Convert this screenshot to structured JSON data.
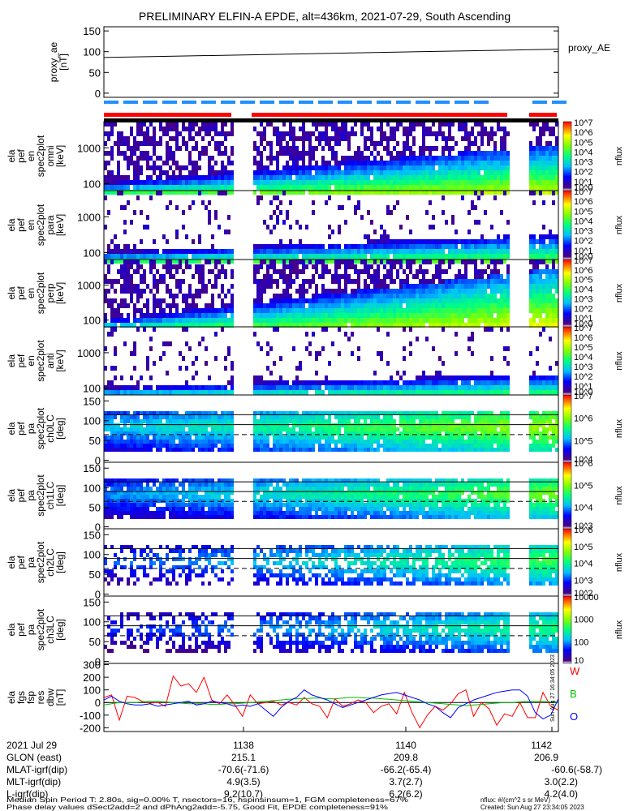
{
  "title": "PRELIMINARY ELFIN-A EPDE, alt=436km, 2021-07-29, South Ascending",
  "colors": {
    "status_red": "#ff0000",
    "status_blue": "#1e90ff",
    "fgs_w": "#ff0000",
    "fgs_b": "#00c000",
    "fgs_o": "#0000ff",
    "black": "#000000"
  },
  "chart_data": [
    {
      "type": "line",
      "panel": "proxy_ae",
      "ylabel": "proxy_ae\n[nT]",
      "yticks": [
        "150",
        "100",
        "50",
        "0"
      ],
      "ylim": [
        -10,
        160
      ],
      "series": [
        {
          "name": "proxy_AE",
          "x": [
            0,
            1
          ],
          "values": [
            86,
            106
          ]
        }
      ],
      "legend": "proxy_AE"
    },
    {
      "type": "heatmap",
      "panel": "en_spectra_1",
      "ylabel": "ela\npef\nen\nspec2plot\nomni\n[keV]",
      "yticks": [
        "1000",
        "100"
      ],
      "colorbar": {
        "label": "nflux",
        "ticks": [
          "10^7",
          "10^6",
          "10^5",
          "10^4",
          "10^3",
          "10^2",
          "10^1",
          "10^0"
        ]
      }
    },
    {
      "type": "heatmap",
      "panel": "en_spectra_2",
      "ylabel": "ela\npef\nen\nspec2plot\npara\n[keV]",
      "yticks": [
        "1000",
        "100"
      ],
      "colorbar": {
        "label": "nflux",
        "ticks": [
          "10^7",
          "10^6",
          "10^5",
          "10^4",
          "10^3",
          "10^2",
          "10^1",
          "10^0"
        ]
      }
    },
    {
      "type": "heatmap",
      "panel": "en_spectra_3",
      "ylabel": "ela\npef\nen\nspec2plot\nperp\n[keV]",
      "yticks": [
        "1000",
        "100"
      ],
      "colorbar": {
        "label": "nflux",
        "ticks": [
          "10^7",
          "10^6",
          "10^5",
          "10^4",
          "10^3",
          "10^2",
          "10^1",
          "10^0"
        ]
      }
    },
    {
      "type": "heatmap",
      "panel": "en_spectra_4",
      "ylabel": "ela\npef\nen\nspec2plot\nanti\n[keV]",
      "yticks": [
        "1000",
        "100"
      ],
      "colorbar": {
        "label": "nflux",
        "ticks": [
          "10^7",
          "10^6",
          "10^5",
          "10^4",
          "10^3",
          "10^2",
          "10^1",
          "10^0"
        ]
      }
    },
    {
      "type": "heatmap",
      "panel": "pa_ch0",
      "ylabel": "ela\npef\npa\nspec2plot\nch0LC\n[deg]",
      "yticks": [
        "150",
        "100",
        "50",
        "0"
      ],
      "colorbar": {
        "label": "nflux",
        "ticks": [
          "10^7",
          "10^6",
          "10^5",
          "10^4"
        ]
      }
    },
    {
      "type": "heatmap",
      "panel": "pa_ch1",
      "ylabel": "ela\npef\npa\nspec2plot\nch1LC\n[deg]",
      "yticks": [
        "150",
        "100",
        "50",
        "0"
      ],
      "colorbar": {
        "label": "nflux",
        "ticks": [
          "10^6",
          "10^5",
          "10^4",
          "10^3"
        ]
      }
    },
    {
      "type": "heatmap",
      "panel": "pa_ch2",
      "ylabel": "ela\npef\npa\nspec2plot\nch2LC\n[deg]",
      "yticks": [
        "150",
        "100",
        "50",
        "0"
      ],
      "colorbar": {
        "label": "nflux",
        "ticks": [
          "10^6",
          "10^5",
          "10^4",
          "10^3",
          "10^2"
        ]
      }
    },
    {
      "type": "heatmap",
      "panel": "pa_ch3",
      "ylabel": "ela\npef\npa\nspec2plot\nch3LC\n[deg]",
      "yticks": [
        "150",
        "100",
        "50",
        "0"
      ],
      "colorbar": {
        "label": "nflux",
        "ticks": [
          "10000",
          "1000",
          "100",
          "10"
        ]
      }
    },
    {
      "type": "line",
      "panel": "fgs",
      "ylabel": "ela\nfgs\nfsp\nres\ndbw\n[nT]",
      "yticks": [
        "300",
        "200",
        "100",
        "0",
        "-100",
        "-200"
      ],
      "ylim": [
        -230,
        310
      ],
      "series": [
        {
          "name": "W",
          "values": [
            40,
            60,
            -140,
            50,
            40,
            10,
            -5,
            0,
            -30,
            210,
            130,
            150,
            80,
            200,
            20,
            -10,
            60,
            -20,
            -110,
            60,
            -10,
            0,
            10,
            -20,
            0,
            -20,
            40,
            -10,
            -30,
            -120,
            30,
            -30,
            -10,
            20,
            0,
            -80,
            -30,
            -10,
            -90,
            80,
            -80,
            -200,
            -100,
            -30,
            -60,
            -10,
            70,
            100,
            -110,
            0,
            -50,
            -180,
            -90,
            -110,
            0,
            -120,
            -120,
            80,
            -30,
            -60
          ]
        },
        {
          "name": "B",
          "values": [
            -20,
            -10,
            0,
            0,
            0,
            5,
            10,
            10,
            5,
            0,
            -5,
            -10,
            -10,
            -10,
            -15,
            -15,
            -10,
            -10,
            -5,
            0,
            5,
            10,
            15,
            20,
            25,
            30,
            30,
            35,
            35,
            30,
            30,
            35,
            40,
            40,
            35,
            35,
            30,
            25,
            20,
            15,
            10,
            5,
            0,
            -5,
            -10,
            -15,
            -20,
            -25,
            -20,
            -15,
            -10,
            -5,
            0,
            0,
            5,
            10,
            10,
            10,
            5,
            0
          ]
        },
        {
          "name": "O",
          "values": [
            20,
            50,
            10,
            -10,
            -20,
            -20,
            -10,
            -30,
            -20,
            -10,
            0,
            10,
            -20,
            -10,
            10,
            0,
            -10,
            -30,
            -20,
            -30,
            -10,
            -60,
            -110,
            -40,
            10,
            40,
            100,
            60,
            40,
            20,
            -10,
            -40,
            -20,
            0,
            20,
            40,
            60,
            70,
            80,
            60,
            40,
            20,
            -10,
            -30,
            -80,
            -120,
            -40,
            -10,
            20,
            40,
            60,
            80,
            90,
            100,
            100,
            50,
            -80,
            -130,
            -100,
            30
          ]
        }
      ],
      "legend": [
        "W",
        "B",
        "O"
      ]
    }
  ],
  "time_axis": {
    "labels": [
      "2021 Jul 29",
      "GLON (east)",
      "MLAT-igrf(dip)",
      "MLT-igrf(dip)",
      "L-igrf(dip)"
    ],
    "columns": [
      {
        "tick": "1138",
        "values": [
          "215.1",
          "-70.6(-71.6)",
          "4.9(3.5)",
          "9.2(10.7)"
        ]
      },
      {
        "tick": "1140",
        "values": [
          "209.8",
          "-66.2(-65.4)",
          "3.7(2.7)",
          "6.2(6.2)"
        ]
      },
      {
        "tick": "1142",
        "values": [
          "206.9",
          "-60.6(-58.7)",
          "3.0(2.2)",
          "4.2(4.0)"
        ]
      }
    ]
  },
  "footer": {
    "line1": "Median Spin Period T: 2.80s, sig=0.00% T, nsectors=16, nspinsinsum=1, FGM completeness=67%",
    "line2": "Phase delay values dSect2add=2 and dPhAng2add=-5.75, Good Fit, EPDE completeness=91%",
    "nflux_unit": "nflux: #/(cm^2 s sr MeV)",
    "created": "Created: Sun Aug 27 23:34:05 2023",
    "side_stamp": "Sun Aug 27 16:34:05 2023"
  }
}
